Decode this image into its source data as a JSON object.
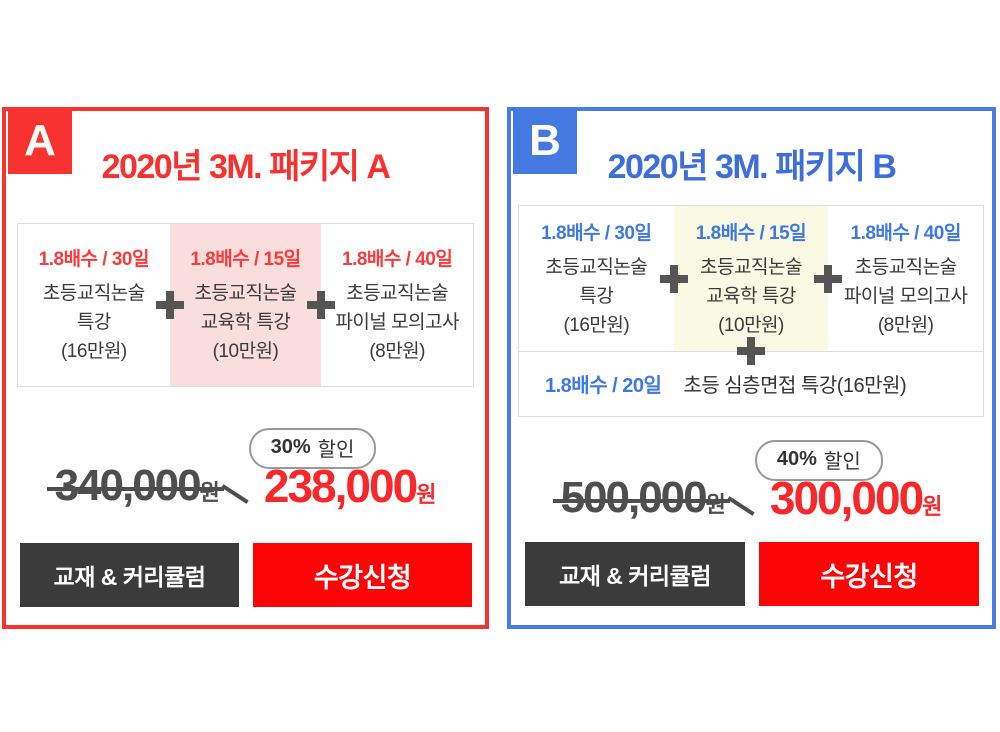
{
  "colors": {
    "red_accent": "#f8322f",
    "blue_accent": "#4a7ce2",
    "blue_title": "#3d6fdb",
    "enroll_button_red": "#fb0506",
    "discount_price_red": "#f8282a",
    "highlight_pink": "#fadede",
    "highlight_cream": "#fafae4",
    "dark_button": "#3b3b3b"
  },
  "a": {
    "badge": "A",
    "title": "2020년 3M. 패키지 A",
    "courses": [
      {
        "meta": "1.8배수 / 30일",
        "line1": "초등교직논술",
        "line2": "특강",
        "price": "(16만원)"
      },
      {
        "meta": "1.8배수 / 15일",
        "line1": "초등교직논술",
        "line2": "교육학 특강",
        "price": "(10만원)"
      },
      {
        "meta": "1.8배수 / 40일",
        "line1": "초등교직논술",
        "line2": "파이널 모의고사",
        "price": "(8만원)"
      }
    ],
    "discount_percent": "30%",
    "discount_label": "할인",
    "old_price": "340,000",
    "old_unit": "원",
    "new_price": "238,000",
    "new_unit": "원",
    "btn_curriculum": "교재 & 커리큘럼",
    "btn_enroll": "수강신청"
  },
  "b": {
    "badge": "B",
    "title": "2020년 3M. 패키지 B",
    "courses": [
      {
        "meta": "1.8배수 / 30일",
        "line1": "초등교직논술",
        "line2": "특강",
        "price": "(16만원)"
      },
      {
        "meta": "1.8배수 / 15일",
        "line1": "초등교직논술",
        "line2": "교육학 특강",
        "price": "(10만원)"
      },
      {
        "meta": "1.8배수 / 40일",
        "line1": "초등교직논술",
        "line2": "파이널 모의고사",
        "price": "(8만원)"
      }
    ],
    "extra": {
      "meta": "1.8배수 / 20일",
      "name": "초등 심층면접 특강(16만원)"
    },
    "discount_percent": "40%",
    "discount_label": "할인",
    "old_price": "500,000",
    "old_unit": "원",
    "new_price": "300,000",
    "new_unit": "원",
    "btn_curriculum": "교재 & 커리큘럼",
    "btn_enroll": "수강신청"
  }
}
